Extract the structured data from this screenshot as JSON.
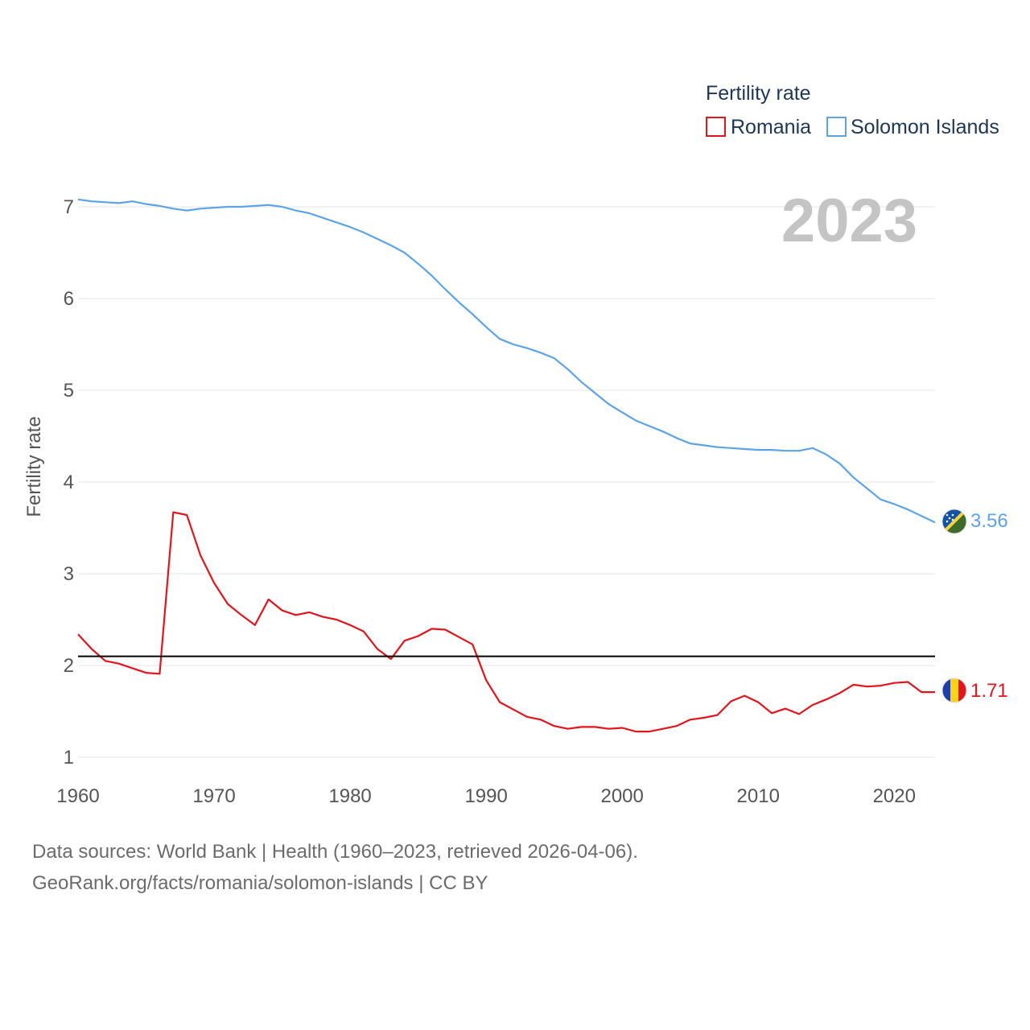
{
  "legend": {
    "title": "Fertility rate",
    "items": [
      {
        "name": "Romania",
        "color": "#e3141b"
      },
      {
        "name": "Solomon Islands",
        "color": "#5da3e6"
      }
    ]
  },
  "year_label": "2023",
  "end_labels": {
    "romania": "1.71",
    "solomon": "3.56"
  },
  "source": {
    "line1": "Data sources: World Bank | Health (1960–2023, retrieved 2026-04-06).",
    "line2": "GeoRank.org/facts/romania/solomon-islands | CC BY"
  },
  "chart_data": {
    "type": "line",
    "title": "",
    "xlabel": "",
    "ylabel": "Fertility rate",
    "xlim": [
      1960,
      2023
    ],
    "ylim": [
      1,
      7
    ],
    "x_ticks": [
      1960,
      1970,
      1980,
      1990,
      2000,
      2010,
      2020
    ],
    "y_ticks": [
      1,
      2,
      3,
      4,
      5,
      6,
      7
    ],
    "reference_line": 2.1,
    "x": [
      1960,
      1961,
      1962,
      1963,
      1964,
      1965,
      1966,
      1967,
      1968,
      1969,
      1970,
      1971,
      1972,
      1973,
      1974,
      1975,
      1976,
      1977,
      1978,
      1979,
      1980,
      1981,
      1982,
      1983,
      1984,
      1985,
      1986,
      1987,
      1988,
      1989,
      1990,
      1991,
      1992,
      1993,
      1994,
      1995,
      1996,
      1997,
      1998,
      1999,
      2000,
      2001,
      2002,
      2003,
      2004,
      2005,
      2006,
      2007,
      2008,
      2009,
      2010,
      2011,
      2012,
      2013,
      2014,
      2015,
      2016,
      2017,
      2018,
      2019,
      2020,
      2021,
      2022,
      2023
    ],
    "series": [
      {
        "name": "Romania",
        "color": "#e3141b",
        "values": [
          2.34,
          2.18,
          2.05,
          2.02,
          1.97,
          1.92,
          1.91,
          3.67,
          3.64,
          3.2,
          2.9,
          2.67,
          2.55,
          2.44,
          2.72,
          2.6,
          2.55,
          2.58,
          2.53,
          2.5,
          2.44,
          2.37,
          2.18,
          2.07,
          2.27,
          2.32,
          2.4,
          2.39,
          2.31,
          2.23,
          1.84,
          1.6,
          1.52,
          1.44,
          1.41,
          1.34,
          1.31,
          1.33,
          1.33,
          1.31,
          1.32,
          1.28,
          1.28,
          1.31,
          1.34,
          1.41,
          1.43,
          1.46,
          1.61,
          1.67,
          1.6,
          1.48,
          1.53,
          1.47,
          1.57,
          1.63,
          1.7,
          1.79,
          1.77,
          1.78,
          1.81,
          1.82,
          1.71,
          1.71
        ]
      },
      {
        "name": "Solomon Islands",
        "color": "#5da3e6",
        "values": [
          7.08,
          7.06,
          7.05,
          7.04,
          7.06,
          7.03,
          7.01,
          6.98,
          6.96,
          6.98,
          6.99,
          7.0,
          7.0,
          7.01,
          7.02,
          7.0,
          6.96,
          6.93,
          6.88,
          6.83,
          6.78,
          6.72,
          6.65,
          6.58,
          6.5,
          6.38,
          6.25,
          6.1,
          5.96,
          5.83,
          5.69,
          5.56,
          5.5,
          5.46,
          5.41,
          5.35,
          5.23,
          5.09,
          4.97,
          4.85,
          4.76,
          4.67,
          4.61,
          4.55,
          4.48,
          4.42,
          4.4,
          4.38,
          4.37,
          4.36,
          4.35,
          4.35,
          4.34,
          4.34,
          4.37,
          4.3,
          4.2,
          4.05,
          3.93,
          3.81,
          3.76,
          3.7,
          3.63,
          3.56
        ]
      }
    ]
  }
}
